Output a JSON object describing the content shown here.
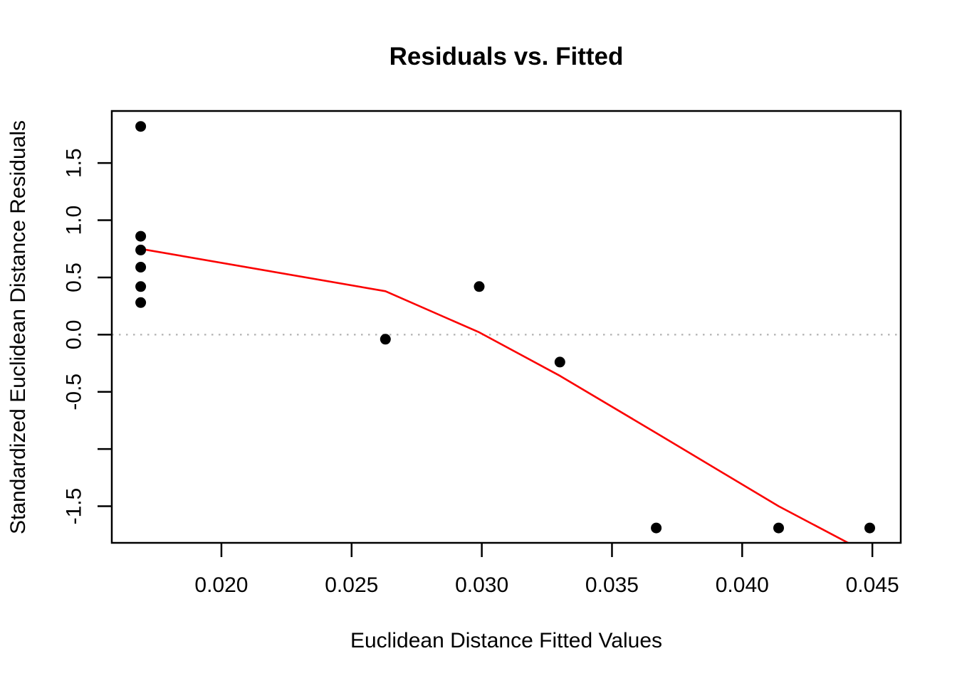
{
  "chart_data": {
    "type": "scatter",
    "title": "Residuals vs. Fitted",
    "xlabel": "Euclidean Distance Fitted Values",
    "ylabel": "Standardized Euclidean Distance Residuals",
    "xlim": [
      0.01579,
      0.04609
    ],
    "ylim": [
      -1.82,
      1.955
    ],
    "grid": false,
    "legend": null,
    "background": "#ffffff",
    "axis_color": "#000000",
    "point_color": "#000000",
    "x_ticks": [
      {
        "value": 0.02,
        "label": "0.020"
      },
      {
        "value": 0.025,
        "label": "0.025"
      },
      {
        "value": 0.03,
        "label": "0.030"
      },
      {
        "value": 0.035,
        "label": "0.035"
      },
      {
        "value": 0.04,
        "label": "0.040"
      },
      {
        "value": 0.045,
        "label": "0.045"
      }
    ],
    "y_ticks": [
      {
        "value": 1.5,
        "label": "1.5"
      },
      {
        "value": 1.0,
        "label": "1.0"
      },
      {
        "value": 0.5,
        "label": "0.5"
      },
      {
        "value": 0.0,
        "label": "0.0"
      },
      {
        "value": -0.5,
        "label": "-0.5"
      },
      {
        "value": -1.0,
        "label": ""
      },
      {
        "value": -1.5,
        "label": "-1.5"
      }
    ],
    "points": [
      [
        0.0169,
        1.82
      ],
      [
        0.0169,
        0.86
      ],
      [
        0.0169,
        0.74
      ],
      [
        0.0169,
        0.59
      ],
      [
        0.0169,
        0.42
      ],
      [
        0.0169,
        0.28
      ],
      [
        0.0263,
        -0.04
      ],
      [
        0.0299,
        0.42
      ],
      [
        0.033,
        -0.24
      ],
      [
        0.0367,
        -1.69
      ],
      [
        0.0414,
        -1.69
      ],
      [
        0.0449,
        -1.69
      ]
    ],
    "smooth_line": {
      "name": "lowess-trend",
      "color": "#fb0000",
      "points": [
        [
          0.0169,
          0.75
        ],
        [
          0.0263,
          0.38
        ],
        [
          0.0299,
          0.02
        ],
        [
          0.033,
          -0.36
        ],
        [
          0.0367,
          -0.86
        ],
        [
          0.0414,
          -1.5
        ],
        [
          0.0449,
          -1.92
        ]
      ]
    },
    "zero_line": {
      "value": 0,
      "color": "#b2b2b2",
      "style": "dotted"
    }
  }
}
